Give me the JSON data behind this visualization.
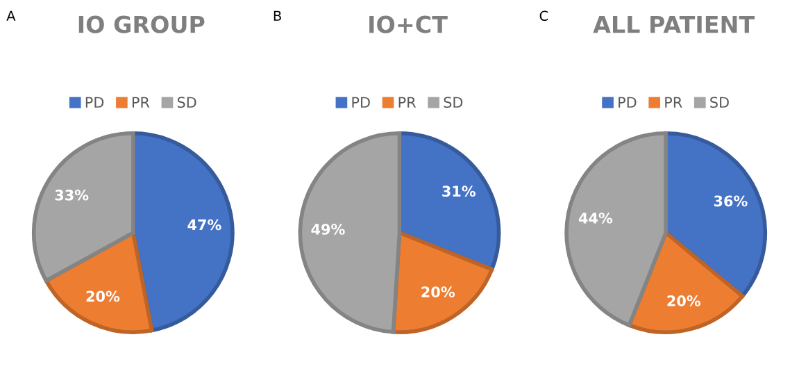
{
  "chart_data": [
    {
      "type": "pie",
      "title": "IO GROUP",
      "annotations": [
        "A"
      ],
      "categories": [
        "PD",
        "PR",
        "SD"
      ],
      "values": [
        47,
        20,
        33
      ],
      "value_labels": [
        "47%",
        "20%",
        "33%"
      ],
      "colors": [
        "#4472c4",
        "#ed7d31",
        "#a5a5a5"
      ],
      "legend": "top"
    },
    {
      "type": "pie",
      "title": "IO+CT",
      "annotations": [
        "B"
      ],
      "categories": [
        "PD",
        "PR",
        "SD"
      ],
      "values": [
        31,
        20,
        49
      ],
      "value_labels": [
        "31%",
        "20%",
        "49%"
      ],
      "colors": [
        "#4472c4",
        "#ed7d31",
        "#a5a5a5"
      ],
      "legend": "top"
    },
    {
      "type": "pie",
      "title": "ALL PATIENT",
      "annotations": [
        "C"
      ],
      "categories": [
        "PD",
        "PR",
        "SD"
      ],
      "values": [
        36,
        20,
        44
      ],
      "value_labels": [
        "36%",
        "20%",
        "44%"
      ],
      "colors": [
        "#4472c4",
        "#ed7d31",
        "#a5a5a5"
      ],
      "legend": "top"
    }
  ]
}
